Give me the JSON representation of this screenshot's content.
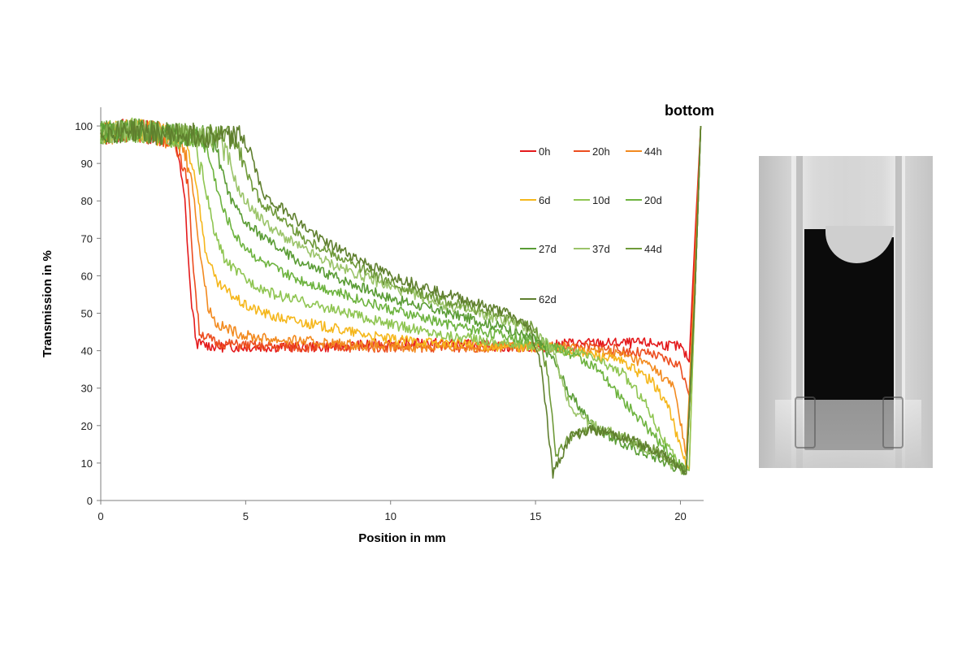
{
  "chart_data": {
    "type": "line",
    "xlabel": "Position in mm",
    "ylabel": "Transmission in %",
    "xlim": [
      0,
      20.8
    ],
    "ylim": [
      0,
      105
    ],
    "xticks": [
      0,
      5,
      10,
      15,
      20
    ],
    "yticks": [
      0,
      10,
      20,
      30,
      40,
      50,
      60,
      70,
      80,
      90,
      100
    ],
    "annotation": "bottom",
    "legend_position": "top-right",
    "grid": false,
    "series": [
      {
        "name": "0h",
        "color": "#e41a1c",
        "x": [
          0,
          1,
          2,
          2.6,
          2.9,
          3.1,
          3.3,
          4,
          6,
          8,
          10,
          12,
          14,
          15.5,
          16,
          17,
          18,
          19,
          20,
          20.3,
          20.5,
          20.7
        ],
        "y": [
          98,
          99,
          98,
          96,
          80,
          55,
          42,
          41,
          41,
          41,
          42,
          42,
          41,
          41,
          42,
          42,
          42,
          42,
          41,
          37,
          70,
          100
        ]
      },
      {
        "name": "20h",
        "color": "#ec4d1f",
        "x": [
          0,
          1,
          2,
          2.6,
          3.0,
          3.2,
          3.4,
          4,
          6,
          8,
          10,
          12,
          14,
          15.5,
          16,
          17,
          18,
          19,
          20,
          20.3,
          20.5,
          20.7
        ],
        "y": [
          98,
          99,
          98,
          96,
          85,
          62,
          45,
          42,
          41,
          41,
          41,
          41,
          41,
          41,
          41,
          41,
          40,
          39,
          36,
          28,
          65,
          100
        ]
      },
      {
        "name": "44h",
        "color": "#f28a1f",
        "x": [
          0,
          1,
          2,
          2.8,
          3.1,
          3.4,
          3.7,
          4,
          5,
          6,
          8,
          10,
          12,
          14,
          15.5,
          16,
          17,
          18,
          19,
          19.8,
          20.2,
          20.5,
          20.7
        ],
        "y": [
          98,
          99,
          98,
          95,
          88,
          68,
          52,
          47,
          44,
          43,
          42,
          41,
          41,
          41,
          41,
          41,
          40,
          39,
          36,
          30,
          12,
          60,
          100
        ]
      },
      {
        "name": "6d",
        "color": "#f5b71c",
        "x": [
          0,
          1,
          2,
          3.0,
          3.3,
          3.6,
          4,
          5,
          6,
          8,
          10,
          12,
          14,
          15.5,
          16,
          17,
          18,
          19,
          19.6,
          20.0,
          20.3,
          20.5,
          20.7
        ],
        "y": [
          98,
          99,
          98,
          95,
          85,
          67,
          58,
          52,
          49,
          46,
          43,
          42,
          41,
          41,
          40,
          39,
          37,
          32,
          25,
          14,
          8,
          55,
          100
        ]
      },
      {
        "name": "10d",
        "color": "#8fc552",
        "x": [
          0,
          1,
          2,
          3.2,
          3.5,
          3.9,
          4.3,
          5,
          6,
          8,
          10,
          12,
          14,
          15.5,
          16,
          17,
          18,
          18.8,
          19.5,
          20.0,
          20.3,
          20.5,
          20.7
        ],
        "y": [
          98,
          99,
          98,
          96,
          88,
          72,
          64,
          59,
          55,
          51,
          47,
          44,
          42,
          41,
          40,
          38,
          34,
          26,
          15,
          9,
          8,
          55,
          100
        ]
      },
      {
        "name": "20d",
        "color": "#6db33f",
        "x": [
          0,
          1,
          2,
          3.5,
          3.8,
          4.2,
          4.7,
          5.5,
          6.5,
          8,
          10,
          12,
          14,
          15.3,
          16,
          17,
          18,
          19,
          19.8,
          20.2,
          20.5,
          20.7
        ],
        "y": [
          98,
          99,
          98,
          97,
          90,
          78,
          70,
          64,
          60,
          56,
          51,
          47,
          44,
          42,
          40,
          36,
          27,
          18,
          11,
          8,
          55,
          100
        ]
      },
      {
        "name": "27d",
        "color": "#5a9c35",
        "x": [
          0,
          1,
          2,
          3.8,
          4.1,
          4.5,
          5,
          6,
          7,
          8,
          10,
          12,
          14,
          15,
          15.6,
          16.2,
          17,
          18,
          19,
          19.8,
          20.2,
          20.5,
          20.7
        ],
        "y": [
          98,
          99,
          98,
          97,
          90,
          80,
          74,
          68,
          63,
          60,
          54,
          50,
          46,
          43,
          38,
          28,
          20,
          15,
          12,
          9,
          8,
          55,
          100
        ]
      },
      {
        "name": "37d",
        "color": "#9bc46a",
        "x": [
          0,
          1,
          2,
          4.1,
          4.4,
          4.8,
          5.3,
          6,
          7,
          8,
          10,
          12,
          14,
          15,
          15.6,
          16.2,
          17,
          18,
          19,
          19.8,
          20.2,
          20.5,
          20.7
        ],
        "y": [
          98,
          99,
          98,
          97,
          91,
          82,
          77,
          72,
          67,
          63,
          57,
          52,
          48,
          45,
          40,
          25,
          20,
          17,
          13,
          9,
          8,
          55,
          100
        ]
      },
      {
        "name": "44d",
        "color": "#6f9a3a",
        "x": [
          0,
          1,
          2,
          4.5,
          4.8,
          5.2,
          5.6,
          6.3,
          7,
          8,
          10,
          12,
          14,
          15,
          15.4,
          15.7,
          16.2,
          17,
          18,
          19,
          19.8,
          20.2,
          20.5,
          20.7
        ],
        "y": [
          98,
          99,
          98,
          97,
          93,
          84,
          79,
          75,
          70,
          66,
          58,
          53,
          49,
          46,
          35,
          12,
          17,
          19,
          17,
          14,
          10,
          8,
          55,
          100
        ]
      },
      {
        "name": "62d",
        "color": "#5f7f2e",
        "x": [
          0,
          1,
          2,
          4.9,
          5.2,
          5.5,
          5.8,
          6.5,
          7,
          8,
          10,
          12,
          14,
          14.8,
          15.2,
          15.6,
          16.2,
          17,
          18,
          19,
          19.8,
          20.2,
          20.5,
          20.7
        ],
        "y": [
          98,
          99,
          98,
          97,
          92,
          84,
          80,
          77,
          73,
          68,
          60,
          55,
          50,
          46,
          36,
          7,
          17,
          19,
          17,
          14,
          10,
          7,
          55,
          100
        ]
      }
    ]
  }
}
